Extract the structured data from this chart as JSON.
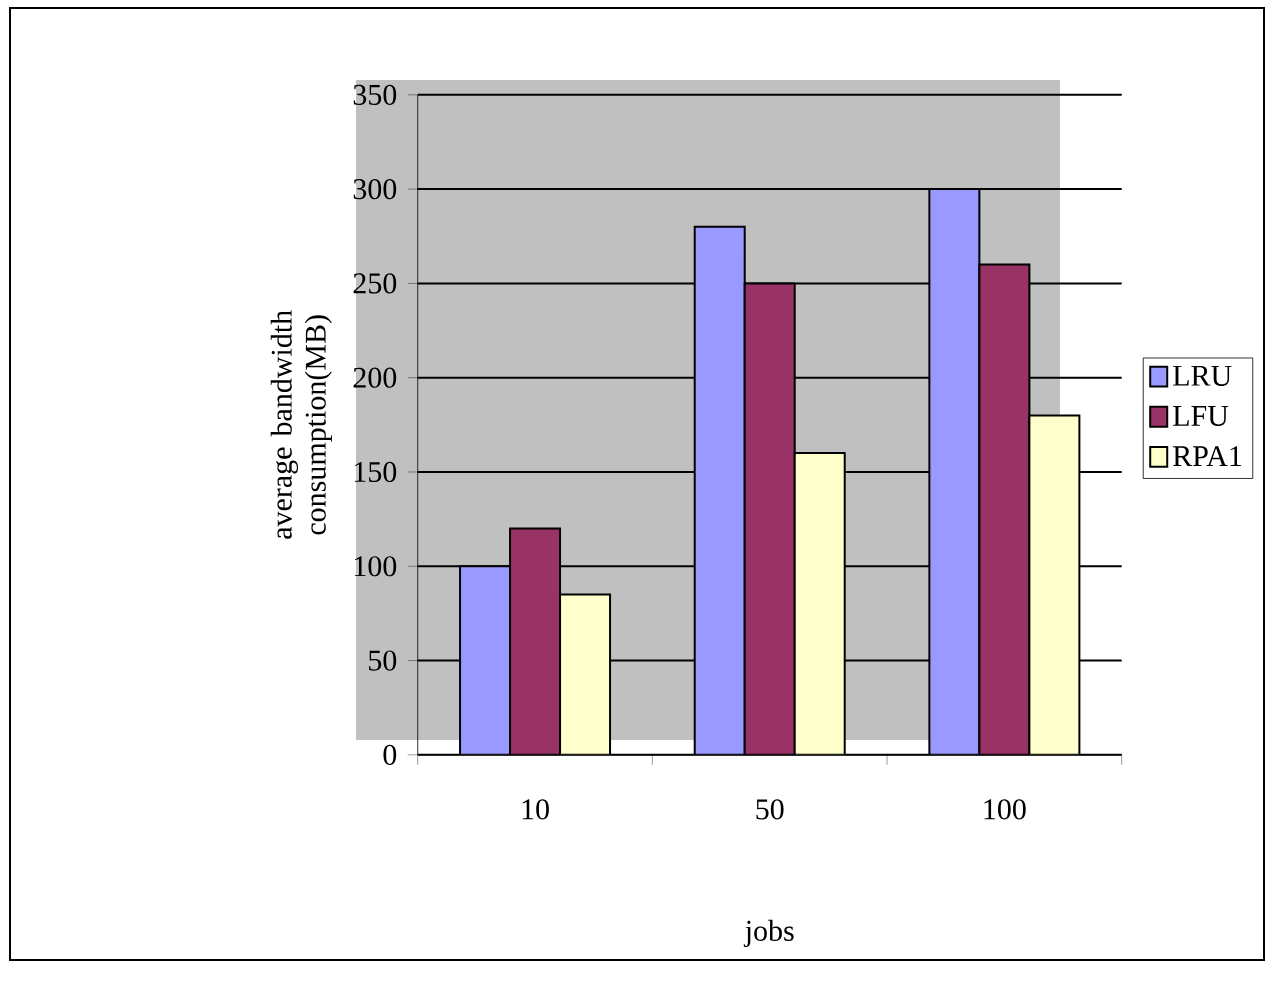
{
  "chart_data": {
    "type": "bar",
    "xlabel": "jobs",
    "ylabel": "average bandwidth consumption(MB)",
    "categories": [
      "10",
      "50",
      "100"
    ],
    "series": [
      {
        "name": "LRU",
        "color": "#9999ff",
        "values": [
          100,
          280,
          300
        ]
      },
      {
        "name": "LFU",
        "color": "#993366",
        "values": [
          120,
          250,
          260
        ]
      },
      {
        "name": "RPA1",
        "color": "#ffffcc",
        "values": [
          85,
          160,
          180
        ]
      }
    ],
    "ylim": [
      0,
      350
    ],
    "yticks": [
      0,
      50,
      100,
      150,
      200,
      250,
      300,
      350
    ],
    "grid": "y",
    "legend": "right"
  }
}
